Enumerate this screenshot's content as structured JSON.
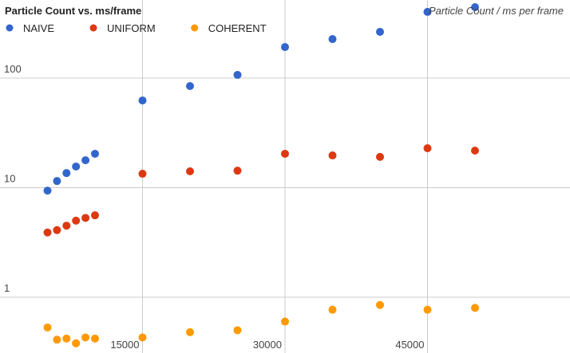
{
  "chart_data": {
    "type": "scatter",
    "title": "Particle Count vs. ms/frame",
    "y_label": "Particle Count / ms per frame",
    "x": [
      5000,
      6000,
      7000,
      8000,
      9000,
      10000,
      15000,
      20000,
      25000,
      30000,
      35000,
      40000,
      45000,
      50000
    ],
    "series": [
      {
        "name": "NAIVE",
        "color": "#3366cc",
        "values": [
          9.4,
          11.5,
          13.6,
          15.6,
          17.8,
          20.4,
          62.5,
          84.6,
          107,
          192,
          227,
          264,
          402,
          444
        ]
      },
      {
        "name": "UNIFORM",
        "color": "#dc3912",
        "values": [
          3.9,
          4.1,
          4.5,
          5.0,
          5.3,
          5.6,
          13.4,
          14.1,
          14.3,
          20.4,
          19.7,
          19.1,
          22.9,
          21.8
        ]
      },
      {
        "name": "COHERENT",
        "color": "#ff9900",
        "values": [
          0.53,
          0.41,
          0.42,
          0.38,
          0.43,
          0.42,
          0.43,
          0.48,
          0.5,
          0.6,
          0.77,
          0.85,
          0.77,
          0.8
        ]
      }
    ],
    "xlim": [
      0,
      60000
    ],
    "xticks": [
      15000,
      30000,
      45000
    ],
    "ylim": [
      0.31,
      516
    ],
    "yticks": [
      1,
      10,
      100
    ],
    "log_y": true,
    "grid": true
  }
}
